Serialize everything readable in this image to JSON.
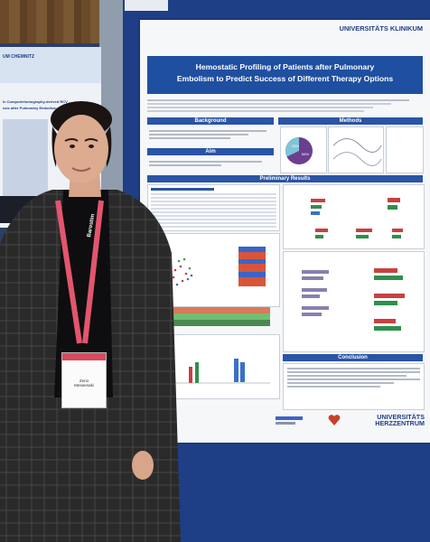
{
  "poster": {
    "title_line1": "Hemostatic Profiling of Patients after Pulmonary",
    "title_line2": "Embolism to Predict Success of Different Therapy Options",
    "university_logo": "UNIVERSITÄTS KLINIKUM",
    "heart_center_logo": "UNIVERSITÄTS HERZZENTRUM",
    "sections": {
      "background": "Background",
      "aim": "Aim",
      "methods": "Methods",
      "preliminary_results": "Preliminary Results",
      "conclusion": "Conclusion"
    },
    "pie_labels": [
      "33%",
      "66%"
    ],
    "colors": {
      "title_band": "#1f4fa0",
      "section_band": "#2a54a5",
      "board": "#1e3f86"
    }
  },
  "left_poster": {
    "header_text": "UM CHEMNITZ",
    "title_line1": "in Computertomography-derived RCV",
    "title_line2": "ssis after Pulmonary Embolism"
  },
  "badge": {
    "name_line1": "Zeno",
    "name_line2": "Meseenaki",
    "lanyard_text": "Barostim"
  }
}
